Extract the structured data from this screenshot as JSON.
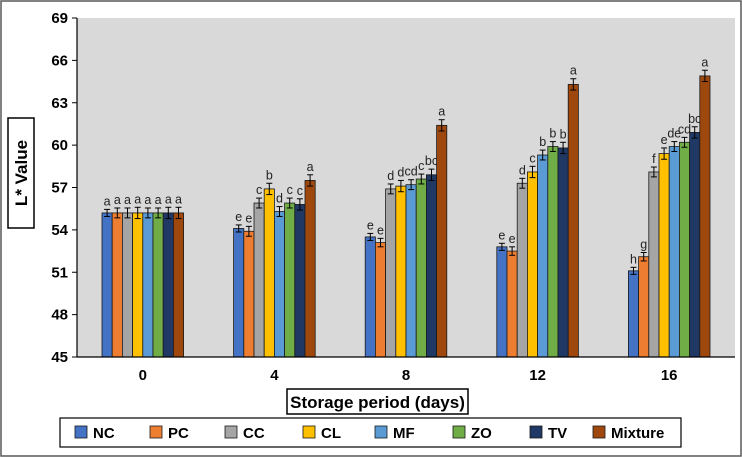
{
  "chart_data": {
    "type": "bar",
    "ylabel": "L* Value",
    "xlabel": "Storage period (days)",
    "categories": [
      "0",
      "4",
      "8",
      "12",
      "16"
    ],
    "ylim": [
      45,
      69
    ],
    "yticks": [
      "45",
      "48",
      "51",
      "54",
      "57",
      "60",
      "63",
      "66",
      "69"
    ],
    "grid": false,
    "legend_position": "bottom",
    "series": [
      {
        "name": "NC",
        "color": "#4472C4",
        "values": [
          55.2,
          54.1,
          53.5,
          52.8,
          51.1
        ],
        "errors": [
          0.25,
          0.25,
          0.25,
          0.25,
          0.25
        ],
        "letters": [
          "a",
          "e",
          "e",
          "e",
          "h"
        ]
      },
      {
        "name": "PC",
        "color": "#ED7D31",
        "values": [
          55.2,
          53.9,
          53.1,
          52.5,
          52.1
        ],
        "errors": [
          0.35,
          0.35,
          0.3,
          0.3,
          0.3
        ],
        "letters": [
          "a",
          "e",
          "e",
          "e",
          "g"
        ]
      },
      {
        "name": "CC",
        "color": "#A5A5A5",
        "values": [
          55.2,
          55.9,
          56.9,
          57.3,
          58.1
        ],
        "errors": [
          0.35,
          0.35,
          0.35,
          0.35,
          0.35
        ],
        "letters": [
          "a",
          "c",
          "d",
          "d",
          "f"
        ]
      },
      {
        "name": "CL",
        "color": "#FFC000",
        "values": [
          55.2,
          56.9,
          57.1,
          58.1,
          59.4
        ],
        "errors": [
          0.4,
          0.4,
          0.4,
          0.4,
          0.4
        ],
        "letters": [
          "a",
          "b",
          "d",
          "c",
          "e"
        ]
      },
      {
        "name": "MF",
        "color": "#5B9BD5",
        "values": [
          55.2,
          55.3,
          57.2,
          59.3,
          59.9
        ],
        "errors": [
          0.35,
          0.35,
          0.35,
          0.35,
          0.35
        ],
        "letters": [
          "a",
          "d",
          "cd",
          "b",
          "de"
        ]
      },
      {
        "name": "ZO",
        "color": "#70AD47",
        "values": [
          55.2,
          55.9,
          57.6,
          59.9,
          60.2
        ],
        "errors": [
          0.35,
          0.35,
          0.35,
          0.35,
          0.35
        ],
        "letters": [
          "a",
          "c",
          "c",
          "b",
          "cd"
        ]
      },
      {
        "name": "TV",
        "color": "#203864",
        "values": [
          55.2,
          55.8,
          57.9,
          59.8,
          60.9
        ],
        "errors": [
          0.4,
          0.4,
          0.4,
          0.4,
          0.4
        ],
        "letters": [
          "a",
          "c",
          "bc",
          "b",
          "bc"
        ]
      },
      {
        "name": "Mixture",
        "color": "#9E480E",
        "values": [
          55.2,
          57.5,
          61.4,
          64.3,
          64.9
        ],
        "errors": [
          0.4,
          0.4,
          0.4,
          0.4,
          0.4
        ],
        "letters": [
          "a",
          "a",
          "a",
          "a",
          "a"
        ]
      }
    ]
  }
}
